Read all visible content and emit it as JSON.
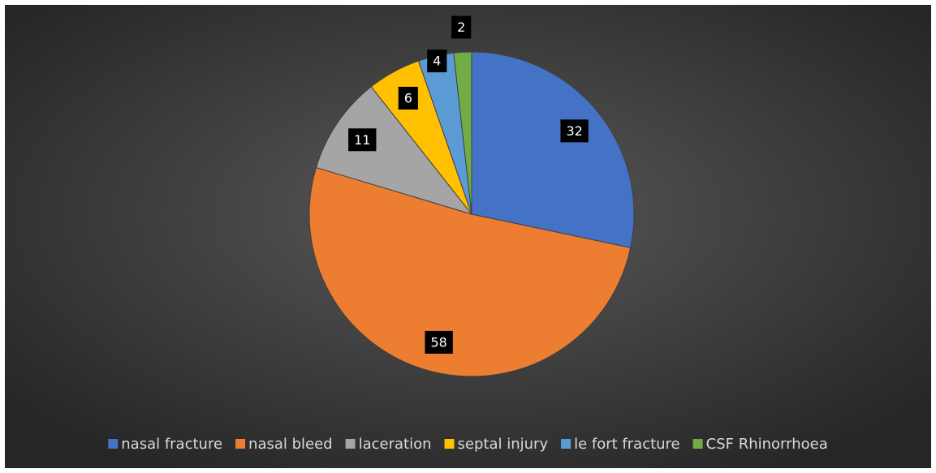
{
  "chart_data": {
    "type": "pie",
    "categories": [
      "nasal fracture",
      "nasal bleed",
      "laceration",
      "septal injury",
      "le fort fracture",
      "CSF Rhinorrhoea"
    ],
    "values": [
      32,
      58,
      11,
      6,
      4,
      2
    ],
    "colors": [
      "#4472c4",
      "#ed7d31",
      "#a5a5a5",
      "#ffc000",
      "#5b9bd5",
      "#70ad47"
    ],
    "legend": "bottom"
  }
}
